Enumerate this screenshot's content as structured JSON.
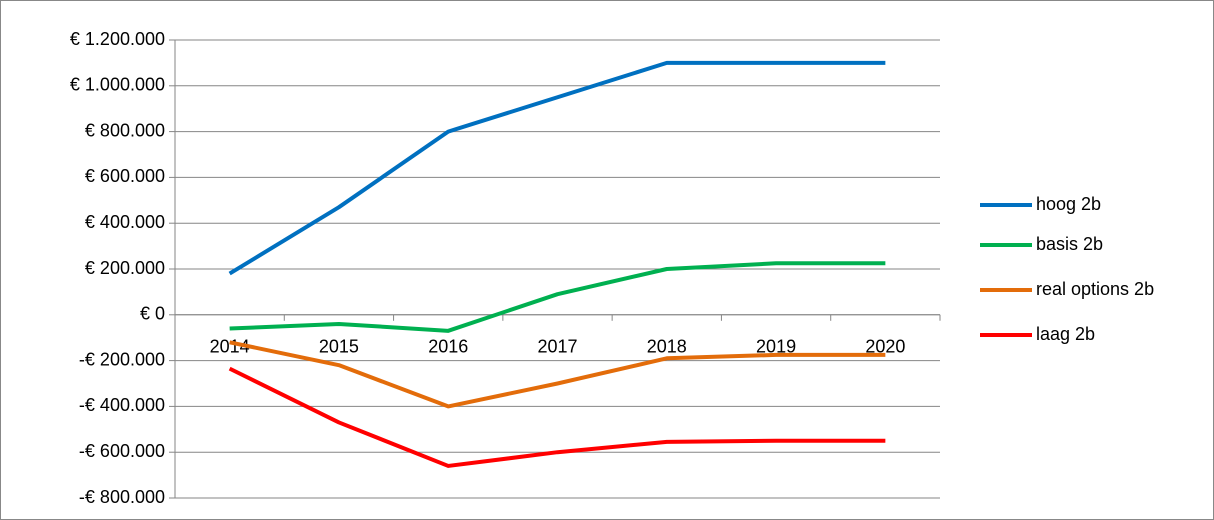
{
  "chart_data": {
    "type": "line",
    "categories": [
      "2014",
      "2015",
      "2016",
      "2017",
      "2018",
      "2019",
      "2020"
    ],
    "series": [
      {
        "name": "hoog 2b",
        "color": "#0070c0",
        "values": [
          180000,
          470000,
          800000,
          950000,
          1100000,
          1100000,
          1100000
        ]
      },
      {
        "name": "basis 2b",
        "color": "#00b050",
        "values": [
          -60000,
          -40000,
          -70000,
          90000,
          200000,
          225000,
          225000
        ]
      },
      {
        "name": "real options 2b",
        "color": "#e36c0a",
        "values": [
          -120000,
          -220000,
          -400000,
          -300000,
          -190000,
          -175000,
          -175000
        ]
      },
      {
        "name": "laag 2b",
        "color": "#ff0000",
        "values": [
          -235000,
          -470000,
          -660000,
          -600000,
          -555000,
          -550000,
          -550000
        ]
      }
    ],
    "ylim": [
      -800000,
      1200000
    ],
    "yticks": [
      {
        "value": -800000,
        "label": "-€ 800.000"
      },
      {
        "value": -600000,
        "label": "-€ 600.000"
      },
      {
        "value": -400000,
        "label": "-€ 400.000"
      },
      {
        "value": -200000,
        "label": "-€ 200.000"
      },
      {
        "value": 0,
        "label": "€ 0"
      },
      {
        "value": 200000,
        "label": "€ 200.000"
      },
      {
        "value": 400000,
        "label": "€ 400.000"
      },
      {
        "value": 600000,
        "label": "€ 600.000"
      },
      {
        "value": 800000,
        "label": "€ 800.000"
      },
      {
        "value": 1000000,
        "label": "€ 1.000.000"
      },
      {
        "value": 1200000,
        "label": "€ 1.200.000"
      }
    ],
    "grid": true,
    "legend": "right"
  }
}
